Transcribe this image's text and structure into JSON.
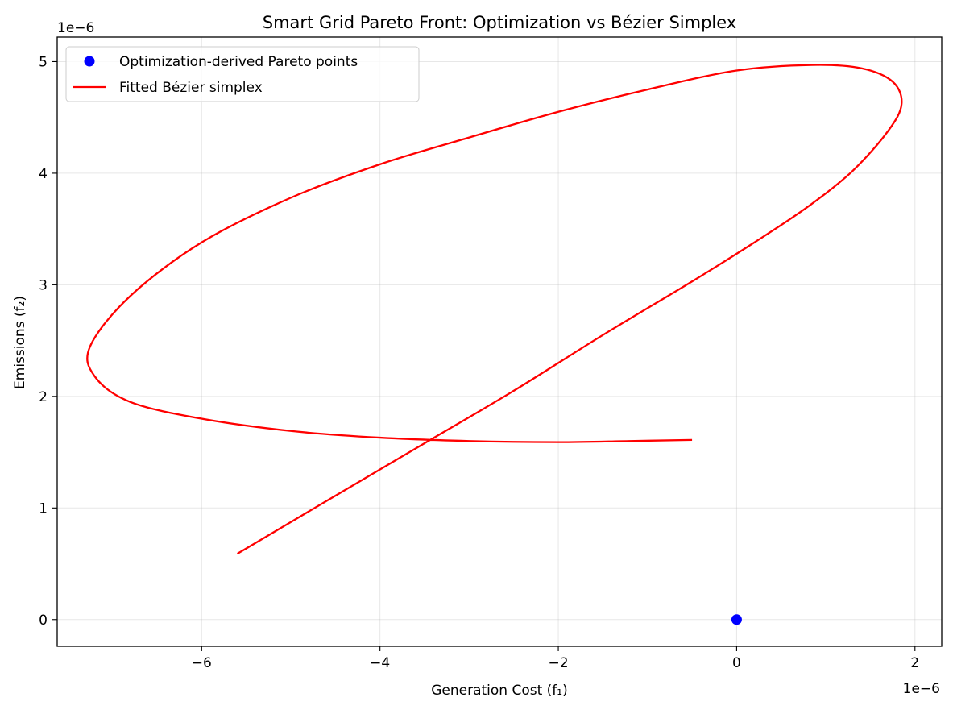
{
  "chart_data": {
    "type": "line",
    "title": "Smart Grid Pareto Front: Optimization vs Bézier Simplex",
    "xlabel": "Generation Cost (f₁)",
    "ylabel": "Emissions (f₂)",
    "x_offset_text": "1e−6",
    "y_offset_text": "1e−6",
    "xlim": [
      -7.62,
      2.3
    ],
    "ylim": [
      -0.24,
      5.22
    ],
    "x_ticks": [
      -6,
      -4,
      -2,
      0,
      2
    ],
    "x_tick_labels": [
      "−6",
      "−4",
      "−2",
      "0",
      "2"
    ],
    "y_ticks": [
      0,
      1,
      2,
      3,
      4,
      5
    ],
    "y_tick_labels": [
      "0",
      "1",
      "2",
      "3",
      "4",
      "5"
    ],
    "grid": true,
    "legend_position": "upper-left",
    "series": [
      {
        "name": "Optimization-derived Pareto points",
        "kind": "scatter",
        "color": "#0000ff",
        "x": [
          0.0
        ],
        "y": [
          0.0
        ]
      },
      {
        "name": "Fitted Bézier simplex",
        "kind": "line",
        "color": "#ff0000",
        "x": [
          -5.6,
          -4.5,
          -3.5,
          -2.5,
          -1.5,
          -0.5,
          0.2,
          0.8,
          1.3,
          1.7,
          1.85,
          1.75,
          1.4,
          0.85,
          0.0,
          -1.0,
          -2.0,
          -3.0,
          -4.0,
          -5.0,
          -6.0,
          -6.8,
          -7.25,
          -7.2,
          -6.8,
          -6.0,
          -5.0,
          -4.0,
          -3.0,
          -2.0,
          -1.2,
          -0.5
        ],
        "y": [
          0.59,
          1.11,
          1.58,
          2.05,
          2.55,
          3.03,
          3.38,
          3.7,
          4.02,
          4.38,
          4.62,
          4.82,
          4.94,
          4.97,
          4.92,
          4.75,
          4.55,
          4.32,
          4.08,
          3.78,
          3.38,
          2.9,
          2.45,
          2.18,
          1.95,
          1.8,
          1.69,
          1.63,
          1.6,
          1.59,
          1.6,
          1.61
        ]
      }
    ]
  }
}
